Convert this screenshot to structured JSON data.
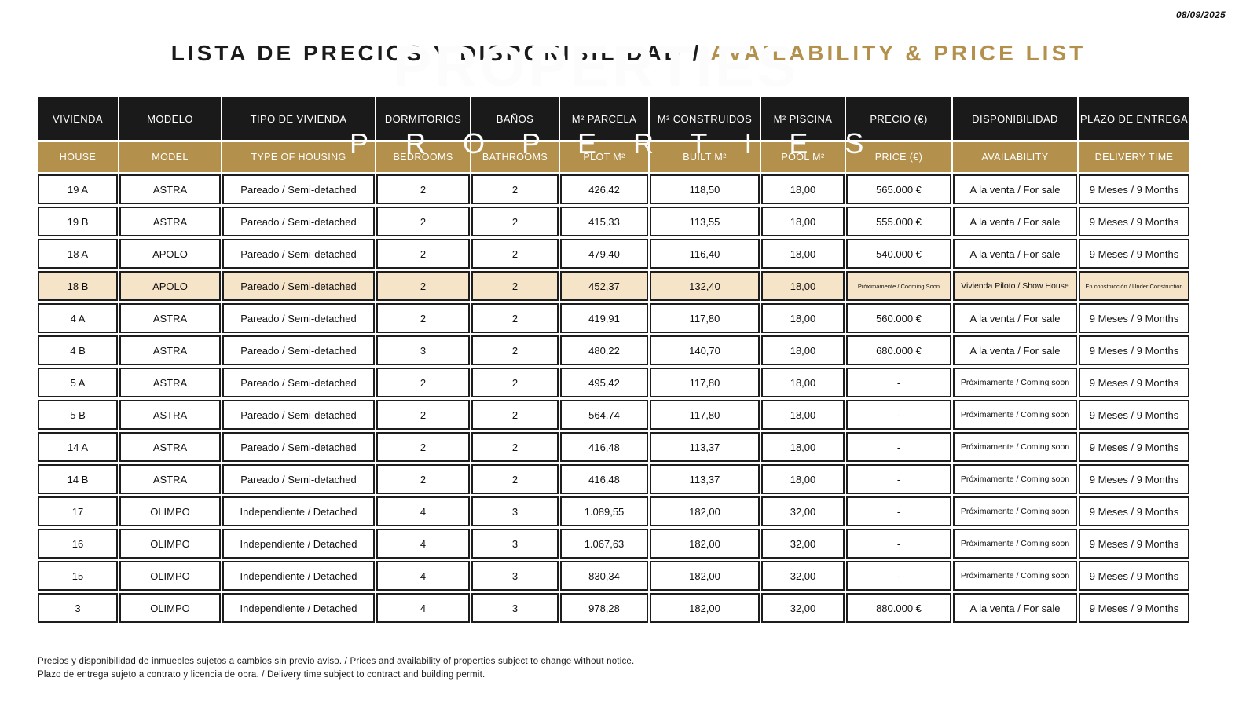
{
  "meta": {
    "date": "08/09/2025"
  },
  "title": {
    "es": "LISTA DE PRECIOS Y DISPONIBILIDAD",
    "separator": " / ",
    "en": "AVAILABILITY & PRICE LIST"
  },
  "watermark": {
    "properties": "PROPERTIES"
  },
  "colors": {
    "accent": "#b3904c",
    "header_dark": "#1a1a1a",
    "highlight_row": "#f6e4c8"
  },
  "table": {
    "header_es": [
      "VIVIENDA",
      "MODELO",
      "TIPO DE VIVIENDA",
      "DORMITORIOS",
      "BAÑOS",
      "M² PARCELA",
      "M² CONSTRUIDOS",
      "M² PISCINA",
      "PRECIO (€)",
      "DISPONIBILIDAD",
      "PLAZO DE ENTREGA"
    ],
    "header_en": [
      "HOUSE",
      "MODEL",
      "TYPE OF HOUSING",
      "BEDROOMS",
      "BATHROOMS",
      "PLOT M²",
      "BUILT M²",
      "POOL M²",
      "PRICE (€)",
      "AVAILABILITY",
      "DELIVERY TIME"
    ],
    "rows": [
      {
        "house": "19 A",
        "model": "ASTRA",
        "type": "Pareado / Semi-detached",
        "bedrooms": "2",
        "bathrooms": "2",
        "plot": "426,42",
        "built": "118,50",
        "pool": "18,00",
        "price": "565.000 €",
        "availability": "A la venta / For sale",
        "delivery": "9 Meses / 9 Months",
        "highlight": false
      },
      {
        "house": "19 B",
        "model": "ASTRA",
        "type": "Pareado / Semi-detached",
        "bedrooms": "2",
        "bathrooms": "2",
        "plot": "415,33",
        "built": "113,55",
        "pool": "18,00",
        "price": "555.000 €",
        "availability": "A la venta / For sale",
        "delivery": "9 Meses / 9 Months",
        "highlight": false
      },
      {
        "house": "18 A",
        "model": "APOLO",
        "type": "Pareado / Semi-detached",
        "bedrooms": "2",
        "bathrooms": "2",
        "plot": "479,40",
        "built": "116,40",
        "pool": "18,00",
        "price": "540.000 €",
        "availability": "A la venta / For sale",
        "delivery": "9 Meses / 9 Months",
        "highlight": false
      },
      {
        "house": "18 B",
        "model": "APOLO",
        "type": "Pareado / Semi-detached",
        "bedrooms": "2",
        "bathrooms": "2",
        "plot": "452,37",
        "built": "132,40",
        "pool": "18,00",
        "price": "Próximamente / Cooming Soon",
        "availability": "Vivienda Piloto / Show House",
        "delivery": "En construcción / Under Construction",
        "highlight": true
      },
      {
        "house": "4 A",
        "model": "ASTRA",
        "type": "Pareado / Semi-detached",
        "bedrooms": "2",
        "bathrooms": "2",
        "plot": "419,91",
        "built": "117,80",
        "pool": "18,00",
        "price": "560.000 €",
        "availability": "A la venta / For sale",
        "delivery": "9 Meses / 9 Months",
        "highlight": false
      },
      {
        "house": "4 B",
        "model": "ASTRA",
        "type": "Pareado / Semi-detached",
        "bedrooms": "3",
        "bathrooms": "2",
        "plot": "480,22",
        "built": "140,70",
        "pool": "18,00",
        "price": "680.000 €",
        "availability": "A la venta / For sale",
        "delivery": "9 Meses / 9 Months",
        "highlight": false
      },
      {
        "house": "5 A",
        "model": "ASTRA",
        "type": "Pareado / Semi-detached",
        "bedrooms": "2",
        "bathrooms": "2",
        "plot": "495,42",
        "built": "117,80",
        "pool": "18,00",
        "price": "-",
        "availability": "Próximamente / Coming soon",
        "delivery": "9 Meses / 9 Months",
        "highlight": false
      },
      {
        "house": "5 B",
        "model": "ASTRA",
        "type": "Pareado / Semi-detached",
        "bedrooms": "2",
        "bathrooms": "2",
        "plot": "564,74",
        "built": "117,80",
        "pool": "18,00",
        "price": "-",
        "availability": "Próximamente / Coming soon",
        "delivery": "9 Meses / 9 Months",
        "highlight": false
      },
      {
        "house": "14 A",
        "model": "ASTRA",
        "type": "Pareado / Semi-detached",
        "bedrooms": "2",
        "bathrooms": "2",
        "plot": "416,48",
        "built": "113,37",
        "pool": "18,00",
        "price": "-",
        "availability": "Próximamente / Coming soon",
        "delivery": "9 Meses / 9 Months",
        "highlight": false
      },
      {
        "house": "14 B",
        "model": "ASTRA",
        "type": "Pareado / Semi-detached",
        "bedrooms": "2",
        "bathrooms": "2",
        "plot": "416,48",
        "built": "113,37",
        "pool": "18,00",
        "price": "-",
        "availability": "Próximamente / Coming soon",
        "delivery": "9 Meses / 9 Months",
        "highlight": false
      },
      {
        "house": "17",
        "model": "OLIMPO",
        "type": "Independiente / Detached",
        "bedrooms": "4",
        "bathrooms": "3",
        "plot": "1.089,55",
        "built": "182,00",
        "pool": "32,00",
        "price": "-",
        "availability": "Próximamente / Coming soon",
        "delivery": "9 Meses / 9 Months",
        "highlight": false
      },
      {
        "house": "16",
        "model": "OLIMPO",
        "type": "Independiente / Detached",
        "bedrooms": "4",
        "bathrooms": "3",
        "plot": "1.067,63",
        "built": "182,00",
        "pool": "32,00",
        "price": "-",
        "availability": "Próximamente / Coming soon",
        "delivery": "9 Meses / 9 Months",
        "highlight": false
      },
      {
        "house": "15",
        "model": "OLIMPO",
        "type": "Independiente / Detached",
        "bedrooms": "4",
        "bathrooms": "3",
        "plot": "830,34",
        "built": "182,00",
        "pool": "32,00",
        "price": "-",
        "availability": "Próximamente / Coming soon",
        "delivery": "9 Meses / 9 Months",
        "highlight": false
      },
      {
        "house": "3",
        "model": "OLIMPO",
        "type": "Independiente / Detached",
        "bedrooms": "4",
        "bathrooms": "3",
        "plot": "978,28",
        "built": "182,00",
        "pool": "32,00",
        "price": "880.000 €",
        "availability": "A la venta / For sale",
        "delivery": "9 Meses / 9 Months",
        "highlight": false
      }
    ]
  },
  "footer": {
    "note1": "Precios y disponibilidad de inmuebles sujetos a cambios sin previo aviso. / Prices and availability of properties subject to change without notice.",
    "note2": "Plazo de entrega sujeto a contrato y licencia de obra. / Delivery time subject to contract and building permit."
  }
}
